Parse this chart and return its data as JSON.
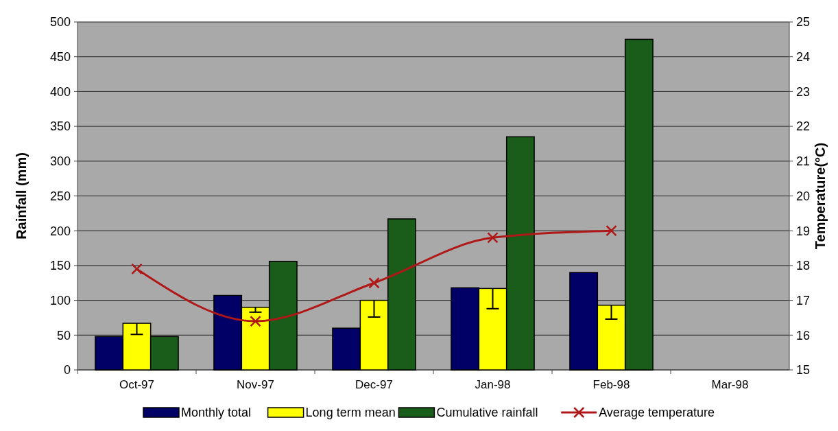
{
  "chart_data": {
    "type": "bar",
    "ylabel": "Rainfall (mm)",
    "y2label": "Temperature(°C)",
    "categories": [
      "Oct-97",
      "Nov-97",
      "Dec-97",
      "Jan-98",
      "Feb-98",
      "Mar-98"
    ],
    "series": [
      {
        "name": "Monthly total",
        "color": "#000066",
        "values": [
          48,
          107,
          60,
          118,
          140,
          null
        ]
      },
      {
        "name": "Long term mean",
        "color": "#ffff00",
        "values": [
          67,
          90,
          100,
          117,
          93,
          null
        ],
        "errors": [
          [
            51,
            67
          ],
          [
            83,
            90
          ],
          [
            76,
            100
          ],
          [
            88,
            117
          ],
          [
            73,
            93
          ],
          null
        ]
      },
      {
        "name": "Cumulative rainfall",
        "color": "#1a5c1a",
        "values": [
          48,
          156,
          217,
          335,
          475,
          null
        ]
      },
      {
        "name": "Average temperature",
        "type": "line",
        "axis": "y2",
        "color": "#b01818",
        "marker": "cross",
        "values": [
          17.9,
          16.4,
          17.5,
          18.8,
          19.0,
          null
        ]
      }
    ],
    "ylim": [
      0,
      500
    ],
    "yticks": [
      0,
      50,
      100,
      150,
      200,
      250,
      300,
      350,
      400,
      450,
      500
    ],
    "y2lim": [
      15,
      25
    ],
    "y2ticks": [
      15,
      16,
      17,
      18,
      19,
      20,
      21,
      22,
      23,
      24,
      25
    ],
    "grid": "y",
    "legend": "bottom"
  }
}
